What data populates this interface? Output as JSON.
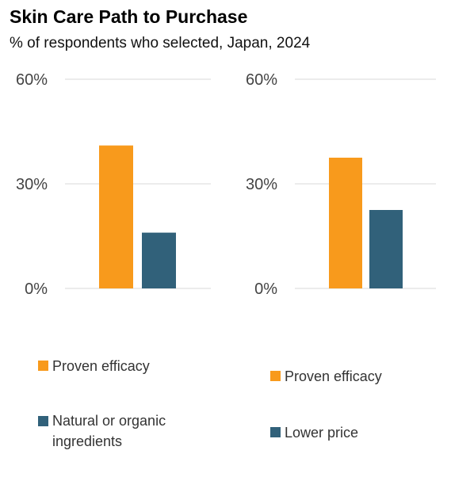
{
  "header": {
    "title": "Skin Care Path to Purchase",
    "subtitle": "% of respondents who selected, Japan, 2024"
  },
  "colors": {
    "orange": "#F89A1C",
    "teal": "#31617A",
    "grid": "#d9d9d9",
    "tick_text": "#444444"
  },
  "chart_data": [
    {
      "type": "bar",
      "categories": [
        "Proven efficacy",
        "Natural or organic ingredients"
      ],
      "values": [
        41,
        16
      ],
      "ylim": [
        0,
        60
      ],
      "yticks": [
        0,
        30,
        60
      ],
      "ytick_labels": [
        "0%",
        "30%",
        "60%"
      ],
      "grid": true,
      "legend": "bottom",
      "legend_entries": [
        "Proven efficacy",
        "Natural or organic ingredients"
      ]
    },
    {
      "type": "bar",
      "categories": [
        "Proven efficacy",
        "Lower price"
      ],
      "values": [
        37.5,
        22.5
      ],
      "ylim": [
        0,
        60
      ],
      "yticks": [
        0,
        30,
        60
      ],
      "ytick_labels": [
        "0%",
        "30%",
        "60%"
      ],
      "grid": true,
      "legend": "bottom",
      "legend_entries": [
        "Proven efficacy",
        "Lower price"
      ]
    }
  ]
}
